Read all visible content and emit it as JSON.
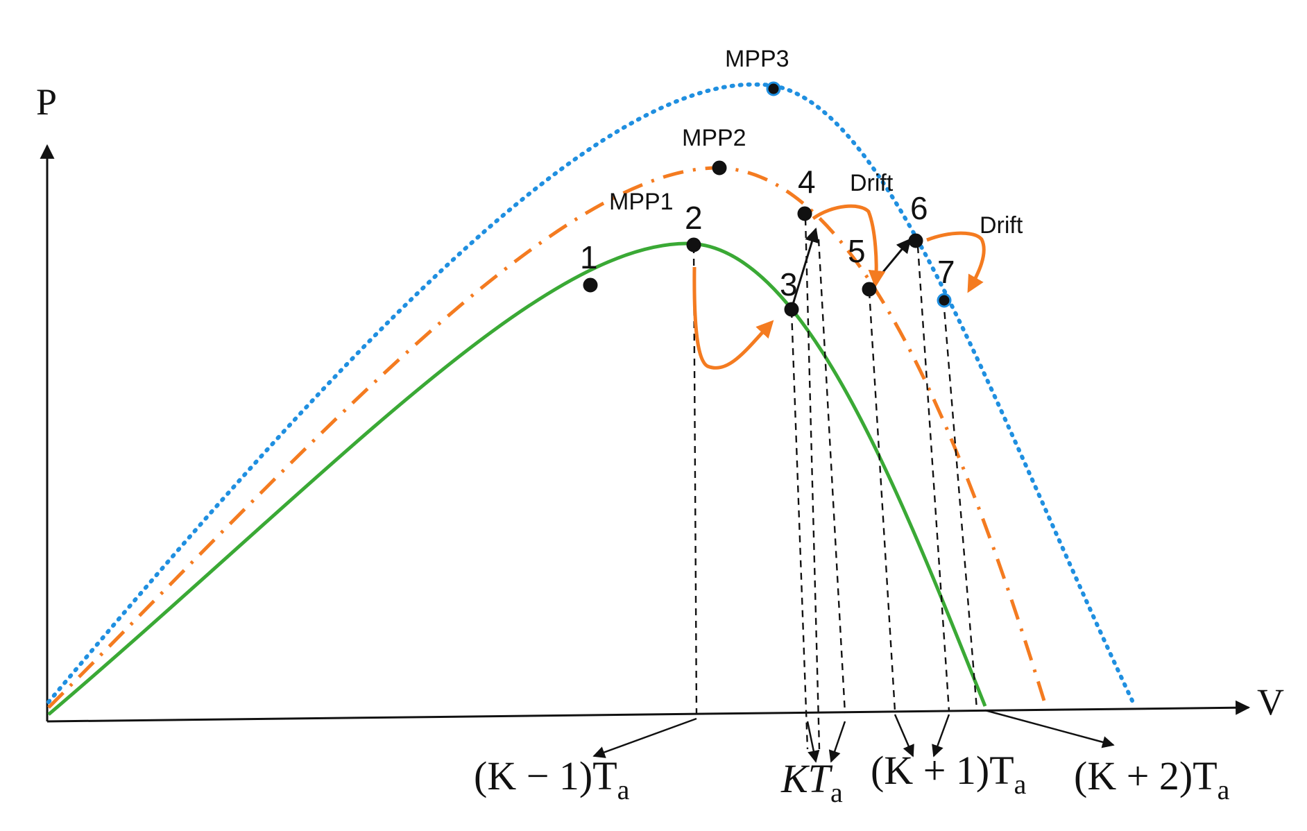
{
  "axes": {
    "y_label": "P",
    "x_label": "V"
  },
  "curves": {
    "mpp1_color": "#3aa935",
    "mpp2_color": "#f47b20",
    "mpp3_color": "#1f8fe0",
    "drift_arrow_color": "#f47b20"
  },
  "peaks": {
    "mpp1": "MPP1",
    "mpp2": "MPP2",
    "mpp3": "MPP3"
  },
  "points": [
    "1",
    "2",
    "3",
    "4",
    "5",
    "6",
    "7"
  ],
  "drift_labels": [
    "Drift",
    "Drift"
  ],
  "time_labels": {
    "k_minus_1": "(K − 1)T",
    "k": "KT",
    "k_plus_1": "(K + 1)T",
    "k_plus_2": "(K + 2)T",
    "subscript": "a"
  }
}
